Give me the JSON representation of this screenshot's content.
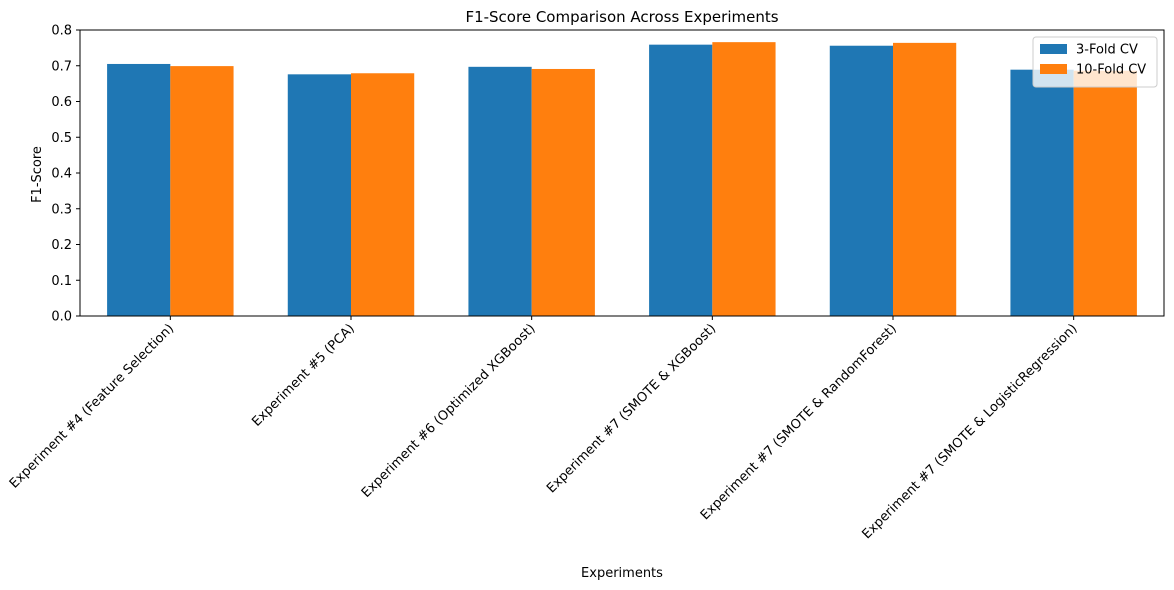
{
  "chart_data": {
    "type": "bar",
    "title": "F1-Score Comparison Across Experiments",
    "xlabel": "Experiments",
    "ylabel": "F1-Score",
    "ylim": [
      0,
      0.8
    ],
    "yticks": [
      "0.0",
      "0.1",
      "0.2",
      "0.3",
      "0.4",
      "0.5",
      "0.6",
      "0.7",
      "0.8"
    ],
    "grid": false,
    "legend_position": "top-right",
    "categories": [
      "Experiment #4 (Feature Selection)",
      "Experiment #5 (PCA)",
      "Experiment #6 (Optimized XGBoost)",
      "Experiment #7 (SMOTE & XGBoost)",
      "Experiment #7 (SMOTE & RandomForest)",
      "Experiment #7 (SMOTE & LogisticRegression)"
    ],
    "series": [
      {
        "name": "3-Fold CV",
        "color": "#1f77b4",
        "values": [
          0.705,
          0.676,
          0.697,
          0.759,
          0.756,
          0.689
        ]
      },
      {
        "name": "10-Fold CV",
        "color": "#ff7f0e",
        "values": [
          0.699,
          0.679,
          0.691,
          0.766,
          0.764,
          0.686
        ]
      }
    ]
  }
}
